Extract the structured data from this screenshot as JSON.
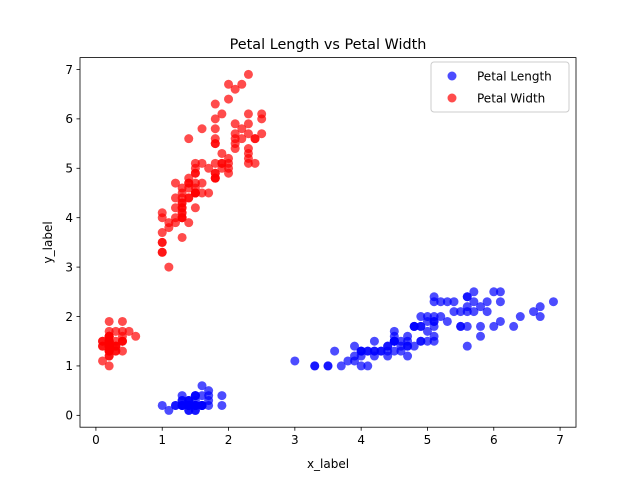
{
  "chart_data": {
    "type": "scatter",
    "title": "Petal Length vs Petal Width",
    "xlabel": "x_label",
    "ylabel": "y_label",
    "xlim": [
      -0.24,
      7.24
    ],
    "ylim": [
      -0.24,
      7.24
    ],
    "xticks": [
      0,
      1,
      2,
      3,
      4,
      5,
      6,
      7
    ],
    "yticks": [
      0,
      1,
      2,
      3,
      4,
      5,
      6,
      7
    ],
    "grid": false,
    "legend_position": "top-right",
    "series": [
      {
        "name": "Petal Length",
        "color": "#0000ff",
        "points": [
          [
            1.4,
            0.2
          ],
          [
            1.4,
            0.2
          ],
          [
            1.3,
            0.2
          ],
          [
            1.5,
            0.2
          ],
          [
            1.4,
            0.2
          ],
          [
            1.7,
            0.4
          ],
          [
            1.4,
            0.3
          ],
          [
            1.5,
            0.2
          ],
          [
            1.4,
            0.2
          ],
          [
            1.5,
            0.1
          ],
          [
            1.5,
            0.2
          ],
          [
            1.6,
            0.2
          ],
          [
            1.4,
            0.1
          ],
          [
            1.1,
            0.1
          ],
          [
            1.2,
            0.2
          ],
          [
            1.5,
            0.4
          ],
          [
            1.3,
            0.4
          ],
          [
            1.4,
            0.3
          ],
          [
            1.7,
            0.3
          ],
          [
            1.5,
            0.3
          ],
          [
            1.7,
            0.2
          ],
          [
            1.5,
            0.4
          ],
          [
            1.0,
            0.2
          ],
          [
            1.7,
            0.5
          ],
          [
            1.9,
            0.2
          ],
          [
            1.6,
            0.2
          ],
          [
            1.6,
            0.4
          ],
          [
            1.5,
            0.2
          ],
          [
            1.4,
            0.2
          ],
          [
            1.6,
            0.2
          ],
          [
            1.6,
            0.2
          ],
          [
            1.5,
            0.4
          ],
          [
            1.5,
            0.1
          ],
          [
            1.4,
            0.2
          ],
          [
            1.5,
            0.2
          ],
          [
            1.2,
            0.2
          ],
          [
            1.3,
            0.2
          ],
          [
            1.4,
            0.1
          ],
          [
            1.3,
            0.2
          ],
          [
            1.5,
            0.2
          ],
          [
            1.3,
            0.3
          ],
          [
            1.3,
            0.3
          ],
          [
            1.3,
            0.2
          ],
          [
            1.6,
            0.6
          ],
          [
            1.9,
            0.4
          ],
          [
            1.4,
            0.3
          ],
          [
            1.6,
            0.2
          ],
          [
            1.4,
            0.2
          ],
          [
            1.5,
            0.2
          ],
          [
            1.4,
            0.2
          ],
          [
            4.7,
            1.4
          ],
          [
            4.5,
            1.5
          ],
          [
            4.9,
            1.5
          ],
          [
            4.0,
            1.3
          ],
          [
            4.6,
            1.5
          ],
          [
            4.5,
            1.3
          ],
          [
            4.7,
            1.6
          ],
          [
            3.3,
            1.0
          ],
          [
            4.6,
            1.3
          ],
          [
            3.9,
            1.4
          ],
          [
            3.5,
            1.0
          ],
          [
            4.2,
            1.5
          ],
          [
            4.0,
            1.0
          ],
          [
            4.7,
            1.4
          ],
          [
            3.6,
            1.3
          ],
          [
            4.4,
            1.4
          ],
          [
            4.5,
            1.5
          ],
          [
            4.1,
            1.0
          ],
          [
            4.5,
            1.5
          ],
          [
            3.9,
            1.1
          ],
          [
            4.8,
            1.8
          ],
          [
            4.0,
            1.3
          ],
          [
            4.9,
            1.5
          ],
          [
            4.7,
            1.2
          ],
          [
            4.3,
            1.3
          ],
          [
            4.4,
            1.4
          ],
          [
            4.8,
            1.4
          ],
          [
            5.0,
            1.7
          ],
          [
            4.5,
            1.5
          ],
          [
            3.5,
            1.0
          ],
          [
            3.8,
            1.1
          ],
          [
            3.7,
            1.0
          ],
          [
            3.9,
            1.2
          ],
          [
            5.1,
            1.6
          ],
          [
            4.5,
            1.5
          ],
          [
            4.5,
            1.6
          ],
          [
            4.7,
            1.5
          ],
          [
            4.4,
            1.3
          ],
          [
            4.1,
            1.3
          ],
          [
            4.0,
            1.3
          ],
          [
            4.4,
            1.2
          ],
          [
            4.6,
            1.4
          ],
          [
            4.0,
            1.2
          ],
          [
            3.3,
            1.0
          ],
          [
            4.2,
            1.3
          ],
          [
            4.2,
            1.2
          ],
          [
            4.2,
            1.3
          ],
          [
            4.3,
            1.3
          ],
          [
            3.0,
            1.1
          ],
          [
            4.1,
            1.3
          ],
          [
            6.0,
            2.5
          ],
          [
            5.1,
            1.9
          ],
          [
            5.9,
            2.1
          ],
          [
            5.6,
            1.8
          ],
          [
            5.8,
            2.2
          ],
          [
            6.6,
            2.1
          ],
          [
            4.5,
            1.7
          ],
          [
            6.3,
            1.8
          ],
          [
            5.8,
            1.8
          ],
          [
            6.1,
            2.5
          ],
          [
            5.1,
            2.0
          ],
          [
            5.3,
            1.9
          ],
          [
            5.5,
            2.1
          ],
          [
            5.0,
            2.0
          ],
          [
            5.1,
            2.4
          ],
          [
            5.3,
            2.3
          ],
          [
            5.5,
            1.8
          ],
          [
            6.7,
            2.2
          ],
          [
            6.9,
            2.3
          ],
          [
            5.0,
            1.5
          ],
          [
            5.7,
            2.3
          ],
          [
            4.9,
            2.0
          ],
          [
            6.7,
            2.0
          ],
          [
            4.9,
            1.8
          ],
          [
            5.7,
            2.1
          ],
          [
            6.0,
            1.8
          ],
          [
            4.8,
            1.8
          ],
          [
            4.9,
            1.8
          ],
          [
            5.6,
            2.1
          ],
          [
            5.8,
            1.6
          ],
          [
            6.1,
            1.9
          ],
          [
            6.4,
            2.0
          ],
          [
            5.6,
            2.2
          ],
          [
            5.1,
            1.5
          ],
          [
            5.6,
            1.4
          ],
          [
            6.1,
            2.3
          ],
          [
            5.6,
            2.4
          ],
          [
            5.5,
            1.8
          ],
          [
            4.8,
            1.8
          ],
          [
            5.4,
            2.1
          ],
          [
            5.6,
            2.4
          ],
          [
            5.1,
            2.3
          ],
          [
            5.1,
            1.9
          ],
          [
            5.9,
            2.3
          ],
          [
            5.7,
            2.5
          ],
          [
            5.2,
            2.3
          ],
          [
            5.0,
            1.9
          ],
          [
            5.2,
            2.0
          ],
          [
            5.4,
            2.3
          ],
          [
            5.1,
            1.8
          ]
        ]
      },
      {
        "name": "Petal Width",
        "color": "#ff0000",
        "points": [
          [
            0.2,
            1.4
          ],
          [
            0.2,
            1.4
          ],
          [
            0.2,
            1.3
          ],
          [
            0.2,
            1.5
          ],
          [
            0.2,
            1.4
          ],
          [
            0.4,
            1.7
          ],
          [
            0.3,
            1.4
          ],
          [
            0.2,
            1.5
          ],
          [
            0.2,
            1.4
          ],
          [
            0.1,
            1.5
          ],
          [
            0.2,
            1.5
          ],
          [
            0.2,
            1.6
          ],
          [
            0.1,
            1.4
          ],
          [
            0.1,
            1.1
          ],
          [
            0.2,
            1.2
          ],
          [
            0.4,
            1.5
          ],
          [
            0.4,
            1.3
          ],
          [
            0.3,
            1.4
          ],
          [
            0.3,
            1.7
          ],
          [
            0.3,
            1.5
          ],
          [
            0.2,
            1.7
          ],
          [
            0.4,
            1.5
          ],
          [
            0.2,
            1.0
          ],
          [
            0.5,
            1.7
          ],
          [
            0.2,
            1.9
          ],
          [
            0.2,
            1.6
          ],
          [
            0.4,
            1.6
          ],
          [
            0.2,
            1.5
          ],
          [
            0.2,
            1.4
          ],
          [
            0.2,
            1.6
          ],
          [
            0.2,
            1.6
          ],
          [
            0.4,
            1.5
          ],
          [
            0.1,
            1.5
          ],
          [
            0.2,
            1.4
          ],
          [
            0.2,
            1.5
          ],
          [
            0.2,
            1.2
          ],
          [
            0.2,
            1.3
          ],
          [
            0.1,
            1.4
          ],
          [
            0.2,
            1.3
          ],
          [
            0.2,
            1.5
          ],
          [
            0.3,
            1.3
          ],
          [
            0.3,
            1.3
          ],
          [
            0.2,
            1.3
          ],
          [
            0.6,
            1.6
          ],
          [
            0.4,
            1.9
          ],
          [
            0.3,
            1.4
          ],
          [
            0.2,
            1.6
          ],
          [
            0.2,
            1.4
          ],
          [
            0.2,
            1.5
          ],
          [
            0.2,
            1.4
          ],
          [
            1.4,
            4.7
          ],
          [
            1.5,
            4.5
          ],
          [
            1.5,
            4.9
          ],
          [
            1.3,
            4.0
          ],
          [
            1.5,
            4.6
          ],
          [
            1.3,
            4.5
          ],
          [
            1.6,
            4.7
          ],
          [
            1.0,
            3.3
          ],
          [
            1.3,
            4.6
          ],
          [
            1.4,
            3.9
          ],
          [
            1.0,
            3.5
          ],
          [
            1.5,
            4.2
          ],
          [
            1.0,
            4.0
          ],
          [
            1.4,
            4.7
          ],
          [
            1.3,
            3.6
          ],
          [
            1.4,
            4.4
          ],
          [
            1.5,
            4.5
          ],
          [
            1.0,
            4.1
          ],
          [
            1.5,
            4.5
          ],
          [
            1.1,
            3.9
          ],
          [
            1.8,
            4.8
          ],
          [
            1.3,
            4.0
          ],
          [
            1.5,
            4.9
          ],
          [
            1.2,
            4.7
          ],
          [
            1.3,
            4.3
          ],
          [
            1.4,
            4.4
          ],
          [
            1.4,
            4.8
          ],
          [
            1.7,
            5.0
          ],
          [
            1.5,
            4.5
          ],
          [
            1.0,
            3.5
          ],
          [
            1.1,
            3.8
          ],
          [
            1.0,
            3.7
          ],
          [
            1.2,
            3.9
          ],
          [
            1.6,
            5.1
          ],
          [
            1.5,
            4.5
          ],
          [
            1.6,
            4.5
          ],
          [
            1.5,
            4.7
          ],
          [
            1.3,
            4.4
          ],
          [
            1.3,
            4.1
          ],
          [
            1.3,
            4.0
          ],
          [
            1.2,
            4.4
          ],
          [
            1.4,
            4.6
          ],
          [
            1.2,
            4.0
          ],
          [
            1.0,
            3.3
          ],
          [
            1.3,
            4.2
          ],
          [
            1.2,
            4.2
          ],
          [
            1.3,
            4.2
          ],
          [
            1.3,
            4.3
          ],
          [
            1.1,
            3.0
          ],
          [
            1.3,
            4.1
          ],
          [
            2.5,
            6.0
          ],
          [
            1.9,
            5.1
          ],
          [
            2.1,
            5.9
          ],
          [
            1.8,
            5.6
          ],
          [
            2.2,
            5.8
          ],
          [
            2.1,
            6.6
          ],
          [
            1.7,
            4.5
          ],
          [
            1.8,
            6.3
          ],
          [
            1.8,
            5.8
          ],
          [
            2.5,
            6.1
          ],
          [
            2.0,
            5.1
          ],
          [
            1.9,
            5.3
          ],
          [
            2.1,
            5.5
          ],
          [
            2.0,
            5.0
          ],
          [
            2.4,
            5.1
          ],
          [
            2.3,
            5.3
          ],
          [
            1.8,
            5.5
          ],
          [
            2.2,
            6.7
          ],
          [
            2.3,
            6.9
          ],
          [
            1.5,
            5.0
          ],
          [
            2.3,
            5.7
          ],
          [
            2.0,
            4.9
          ],
          [
            2.0,
            6.7
          ],
          [
            1.8,
            4.9
          ],
          [
            2.1,
            5.7
          ],
          [
            1.8,
            6.0
          ],
          [
            1.8,
            4.8
          ],
          [
            1.8,
            4.9
          ],
          [
            2.1,
            5.6
          ],
          [
            1.6,
            5.8
          ],
          [
            1.9,
            6.1
          ],
          [
            2.0,
            6.4
          ],
          [
            2.2,
            5.6
          ],
          [
            1.5,
            5.1
          ],
          [
            1.4,
            5.6
          ],
          [
            2.3,
            6.1
          ],
          [
            2.4,
            5.6
          ],
          [
            1.8,
            5.5
          ],
          [
            1.8,
            4.8
          ],
          [
            2.1,
            5.4
          ],
          [
            2.4,
            5.6
          ],
          [
            2.3,
            5.1
          ],
          [
            1.9,
            5.1
          ],
          [
            2.3,
            5.9
          ],
          [
            2.5,
            5.7
          ],
          [
            2.3,
            5.2
          ],
          [
            1.9,
            5.0
          ],
          [
            2.0,
            5.2
          ],
          [
            2.3,
            5.4
          ],
          [
            1.8,
            5.1
          ]
        ]
      }
    ]
  }
}
